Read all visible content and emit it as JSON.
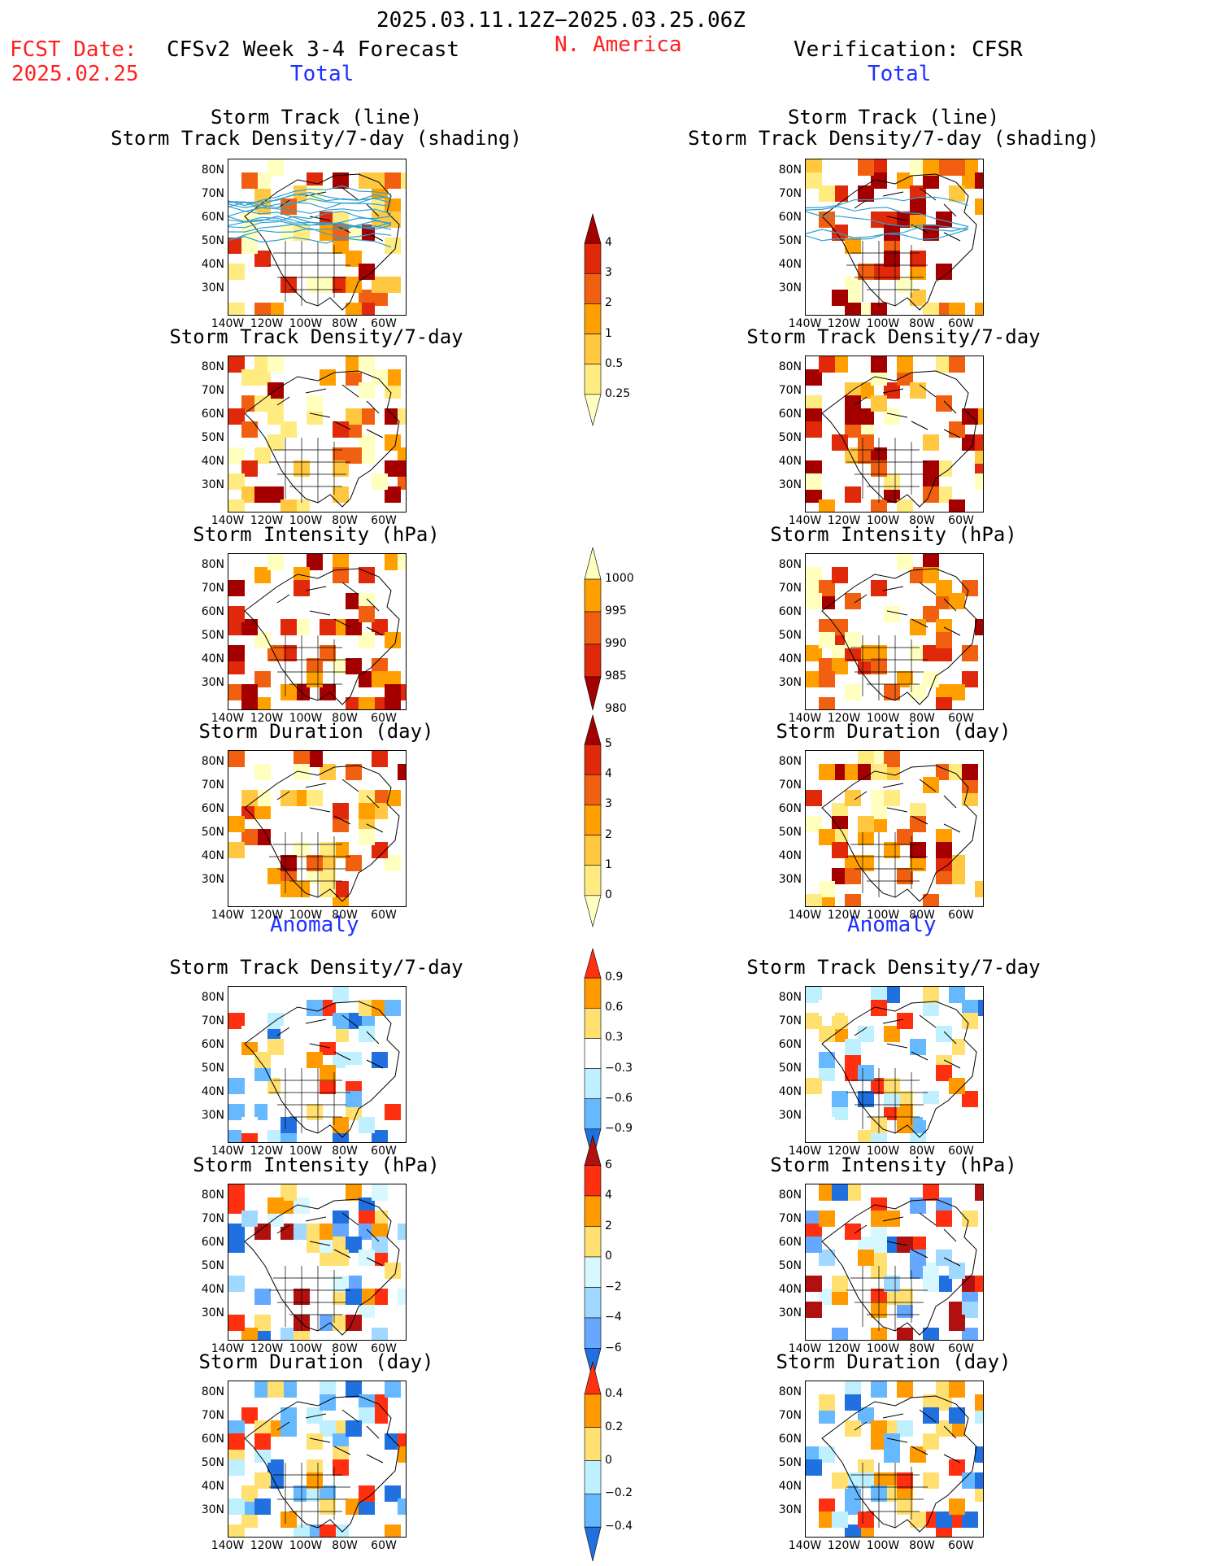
{
  "header": {
    "period": "2025.03.11.12Z−2025.03.25.06Z",
    "fcst_label": "FCST Date:",
    "fcst_date": "2025.02.25",
    "product": "CFSv2 Week 3-4 Forecast",
    "region": "N. America",
    "verification": "Verification: CFSR"
  },
  "sections": {
    "total": "Total",
    "anomaly": "Anomaly"
  },
  "titles": {
    "track_line": "Storm Track (line)",
    "track_shading": "Storm Track Density/7-day (shading)",
    "density": "Storm Track Density/7-day",
    "intensity": "Storm Intensity (hPa)",
    "duration": "Storm Duration (day)"
  },
  "axes": {
    "lat_ticks": [
      "80N",
      "70N",
      "60N",
      "50N",
      "40N",
      "30N"
    ],
    "lon_ticks": [
      "140W",
      "120W",
      "100W",
      "80W",
      "60W"
    ]
  },
  "colorbars": {
    "density_total": {
      "labels": [
        "4",
        "3",
        "2",
        "1",
        "0.5",
        "0.25"
      ],
      "colors": [
        "#a50000",
        "#e0280a",
        "#f06010",
        "#ffa000",
        "#ffc840",
        "#ffeb80",
        "#ffffc0"
      ]
    },
    "intensity_total": {
      "labels": [
        "1000",
        "995",
        "990",
        "985",
        "980"
      ],
      "colors": [
        "#ffffc0",
        "#ffa000",
        "#f06010",
        "#e0280a",
        "#a50000"
      ]
    },
    "duration_total": {
      "labels": [
        "5",
        "4",
        "3",
        "2",
        "1",
        "0"
      ],
      "colors": [
        "#a50000",
        "#e0280a",
        "#f06010",
        "#ffa000",
        "#ffc840",
        "#ffeb80",
        "#ffffc0"
      ]
    },
    "density_anom": {
      "labels": [
        "0.9",
        "0.6",
        "0.3",
        "−0.3",
        "−0.6",
        "−0.9"
      ],
      "colors": [
        "#ff3010",
        "#ff9a00",
        "#ffe070",
        "#ffffff",
        "#bff0ff",
        "#66b8ff",
        "#2070e0"
      ]
    },
    "intensity_anom": {
      "labels": [
        "6",
        "4",
        "2",
        "0",
        "−2",
        "−4",
        "−6"
      ],
      "colors": [
        "#b01010",
        "#ff3010",
        "#ff9a00",
        "#ffe070",
        "#d8f8ff",
        "#a0d8ff",
        "#66a8ff",
        "#2070e0"
      ]
    },
    "duration_anom": {
      "labels": [
        "0.4",
        "0.2",
        "0",
        "−0.2",
        "−0.4"
      ],
      "colors": [
        "#ff3010",
        "#ff9a00",
        "#ffe070",
        "#bff0ff",
        "#66b8ff",
        "#2070e0"
      ]
    }
  }
}
